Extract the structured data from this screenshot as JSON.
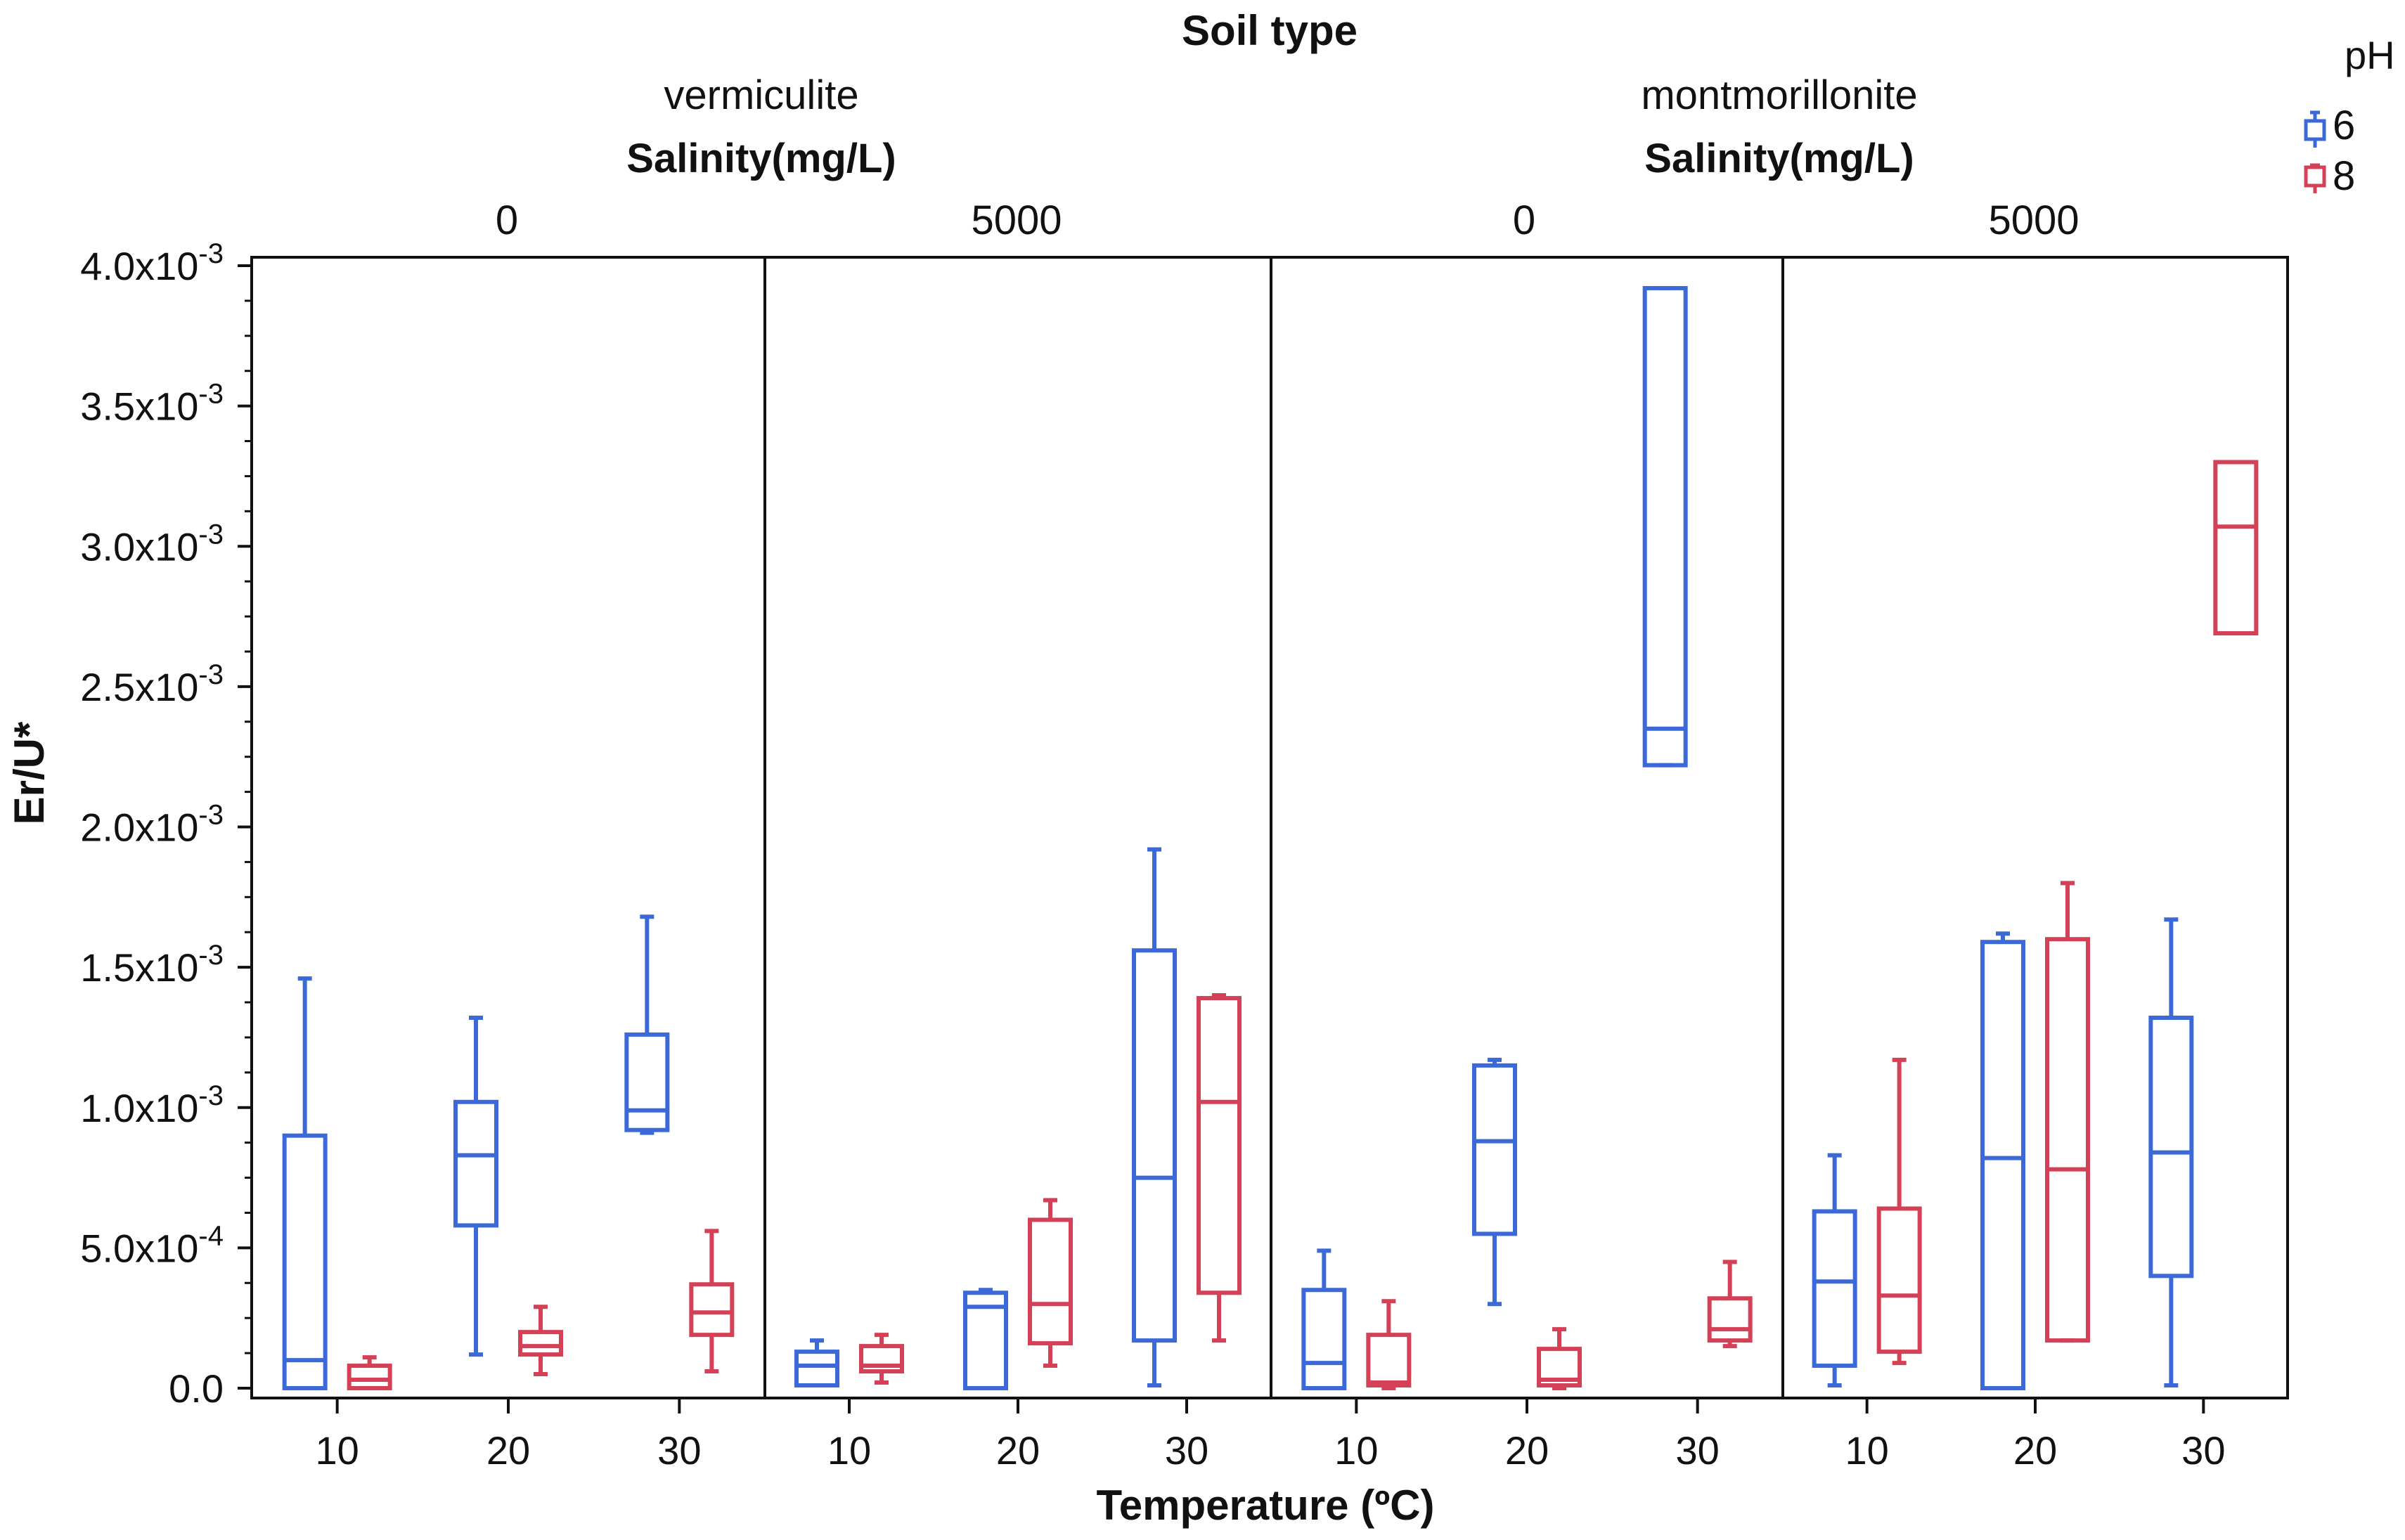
{
  "chart_data": {
    "type": "boxplot",
    "title": "Soil type",
    "ylabel": "Er/U*",
    "xlabel": "Temperature (ºC)",
    "ylim": [
      0,
      0.004
    ],
    "y_ticks": [
      {
        "v": 0,
        "m": "0.0",
        "e": ""
      },
      {
        "v": 0.0005,
        "m": "5.0x10",
        "e": "-4"
      },
      {
        "v": 0.001,
        "m": "1.0x10",
        "e": "-3"
      },
      {
        "v": 0.0015,
        "m": "1.5x10",
        "e": "-3"
      },
      {
        "v": 0.002,
        "m": "2.0x10",
        "e": "-3"
      },
      {
        "v": 0.0025,
        "m": "2.5x10",
        "e": "-3"
      },
      {
        "v": 0.003,
        "m": "3.0x10",
        "e": "-3"
      },
      {
        "v": 0.0035,
        "m": "3.5x10",
        "e": "-3"
      },
      {
        "v": 0.004,
        "m": "4.0x10",
        "e": "-3"
      }
    ],
    "soil_types": [
      "vermiculite",
      "montmorillonite"
    ],
    "salinity_label": "Salinity(mg/L)",
    "legend": {
      "title": "pH",
      "entries": [
        {
          "label": "6",
          "color": "#3b6ad8"
        },
        {
          "label": "8",
          "color": "#d44055"
        }
      ]
    },
    "panels": [
      {
        "soil": "vermiculite",
        "salinity": "0",
        "groups": [
          {
            "temp": "10",
            "pH6": {
              "min": 0,
              "q1": 0,
              "median": 0.0001,
              "q3": 0.0009,
              "max": 0.00146
            },
            "pH8": {
              "min": 0,
              "q1": 0,
              "median": 3e-05,
              "q3": 8e-05,
              "max": 0.00011
            }
          },
          {
            "temp": "20",
            "pH6": {
              "min": 0.00012,
              "q1": 0.00058,
              "median": 0.00083,
              "q3": 0.00102,
              "max": 0.00132
            },
            "pH8": {
              "min": 5e-05,
              "q1": 0.00012,
              "median": 0.00015,
              "q3": 0.0002,
              "max": 0.00029
            }
          },
          {
            "temp": "30",
            "pH6": {
              "min": 0.00091,
              "q1": 0.00092,
              "median": 0.00099,
              "q3": 0.00126,
              "max": 0.00168
            },
            "pH8": {
              "min": 6e-05,
              "q1": 0.00019,
              "median": 0.00027,
              "q3": 0.00037,
              "max": 0.00056
            }
          }
        ]
      },
      {
        "soil": "vermiculite",
        "salinity": "5000",
        "groups": [
          {
            "temp": "10",
            "pH6": {
              "min": 1e-05,
              "q1": 1e-05,
              "median": 8e-05,
              "q3": 0.00013,
              "max": 0.00017
            },
            "pH8": {
              "min": 2e-05,
              "q1": 6e-05,
              "median": 8e-05,
              "q3": 0.00015,
              "max": 0.00019
            }
          },
          {
            "temp": "20",
            "pH6": {
              "min": 0,
              "q1": 0,
              "median": 0.00029,
              "q3": 0.00034,
              "max": 0.00035
            },
            "pH8": {
              "min": 8e-05,
              "q1": 0.00016,
              "median": 0.0003,
              "q3": 0.0006,
              "max": 0.00067
            }
          },
          {
            "temp": "30",
            "pH6": {
              "min": 1e-05,
              "q1": 0.00017,
              "median": 0.00075,
              "q3": 0.00156,
              "max": 0.00192
            },
            "pH8": {
              "min": 0.00017,
              "q1": 0.00034,
              "median": 0.00102,
              "q3": 0.00139,
              "max": 0.0014
            }
          }
        ]
      },
      {
        "soil": "montmorillonite",
        "salinity": "0",
        "groups": [
          {
            "temp": "10",
            "pH6": {
              "min": 0,
              "q1": 0,
              "median": 9e-05,
              "q3": 0.00035,
              "max": 0.00049
            },
            "pH8": {
              "min": 0,
              "q1": 1e-05,
              "median": 2e-05,
              "q3": 0.00019,
              "max": 0.00031
            }
          },
          {
            "temp": "20",
            "pH6": {
              "min": 0.0003,
              "q1": 0.00055,
              "median": 0.00088,
              "q3": 0.00115,
              "max": 0.00117
            },
            "pH8": {
              "min": 0,
              "q1": 1e-05,
              "median": 3e-05,
              "q3": 0.00014,
              "max": 0.00021
            }
          },
          {
            "temp": "30",
            "pH6": {
              "min": 0.00222,
              "q1": 0.00222,
              "median": 0.00235,
              "q3": 0.00392,
              "max": 0.00392
            },
            "pH8": {
              "min": 0.00015,
              "q1": 0.00017,
              "median": 0.00021,
              "q3": 0.00032,
              "max": 0.00045
            }
          }
        ]
      },
      {
        "soil": "montmorillonite",
        "salinity": "5000",
        "groups": [
          {
            "temp": "10",
            "pH6": {
              "min": 1e-05,
              "q1": 8e-05,
              "median": 0.00038,
              "q3": 0.00063,
              "max": 0.00083
            },
            "pH8": {
              "min": 9e-05,
              "q1": 0.00013,
              "median": 0.00033,
              "q3": 0.00064,
              "max": 0.00117
            }
          },
          {
            "temp": "20",
            "pH6": {
              "min": 0,
              "q1": 0,
              "median": 0.00082,
              "q3": 0.00159,
              "max": 0.00162
            },
            "pH8": {
              "min": 0.00017,
              "q1": 0.00017,
              "median": 0.00078,
              "q3": 0.0016,
              "max": 0.0018
            }
          },
          {
            "temp": "30",
            "pH6": {
              "min": 1e-05,
              "q1": 0.0004,
              "median": 0.00084,
              "q3": 0.00132,
              "max": 0.00167
            },
            "pH8": {
              "min": 0.00269,
              "q1": 0.00269,
              "median": 0.00307,
              "q3": 0.0033,
              "max": 0.0033
            }
          }
        ]
      }
    ]
  }
}
